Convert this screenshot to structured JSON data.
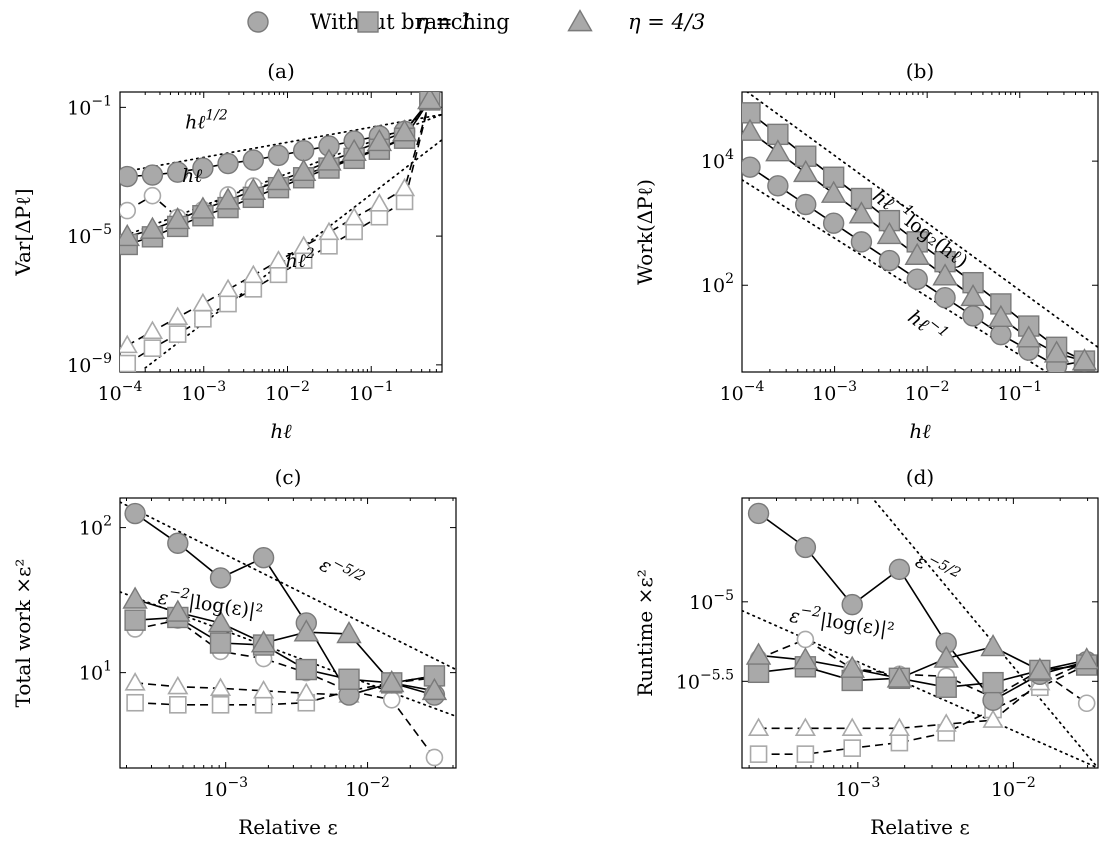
{
  "legend": {
    "entries": [
      {
        "label": "Without branching",
        "marker": "circle"
      },
      {
        "label": "η = 1",
        "marker": "square"
      },
      {
        "label": "η = 4/3",
        "marker": "triangle"
      }
    ]
  },
  "colors": {
    "marker_fill": "#a9a9a9",
    "marker_edge": "#7a7a7a",
    "line": "#000000"
  },
  "chart_data": [
    {
      "id": "a",
      "panel_label": "(a)",
      "type": "line",
      "xlabel": "hℓ",
      "ylabel": "Var[ΔPℓ]",
      "xscale": "log",
      "yscale": "log",
      "xlim": [
        0.0001,
        0.7
      ],
      "ylim": [
        6e-10,
        0.3
      ],
      "xticks": [
        {
          "v": 0.0001,
          "base": "10",
          "exp": "−4"
        },
        {
          "v": 0.001,
          "base": "10",
          "exp": "−3"
        },
        {
          "v": 0.01,
          "base": "10",
          "exp": "−2"
        },
        {
          "v": 0.1,
          "base": "10",
          "exp": "−1"
        }
      ],
      "yticks": [
        {
          "v": 1e-09,
          "base": "10",
          "exp": "−9"
        },
        {
          "v": 1e-05,
          "base": "10",
          "exp": "−5"
        },
        {
          "v": 0.1,
          "base": "10",
          "exp": "−1"
        }
      ],
      "series": [
        {
          "marker": "circle",
          "style": "solid",
          "filled": true,
          "x": [
            0.000122,
            0.000244,
            0.000488,
            0.000977,
            0.00195,
            0.00391,
            0.00781,
            0.0156,
            0.0313,
            0.0625,
            0.125,
            0.25,
            0.5
          ],
          "y": [
            0.00071,
            0.00079,
            0.00097,
            0.0013,
            0.0018,
            0.0023,
            0.0032,
            0.0045,
            0.0063,
            0.009,
            0.013,
            0.018,
            0.17
          ]
        },
        {
          "marker": "square",
          "style": "solid",
          "filled": true,
          "x": [
            0.000122,
            0.000244,
            0.000488,
            0.000977,
            0.00195,
            0.00391,
            0.00781,
            0.0156,
            0.0313,
            0.0625,
            0.125,
            0.25,
            0.5
          ],
          "y": [
            5.5e-06,
            9.5e-06,
            2e-05,
            4.3e-05,
            7.7e-05,
            0.00016,
            0.00032,
            0.00065,
            0.0013,
            0.0026,
            0.005,
            0.011,
            0.17
          ]
        },
        {
          "marker": "triangle",
          "style": "solid",
          "filled": true,
          "x": [
            0.000122,
            0.000244,
            0.000488,
            0.000977,
            0.00195,
            0.00391,
            0.00781,
            0.0156,
            0.0313,
            0.0625,
            0.125,
            0.25,
            0.5
          ],
          "y": [
            9.5e-06,
            1.6e-05,
            3.2e-05,
            6.8e-05,
            0.00013,
            0.00026,
            0.00052,
            0.001,
            0.0021,
            0.0042,
            0.0085,
            0.017,
            0.17
          ]
        },
        {
          "marker": "circle",
          "style": "dashed",
          "filled": false,
          "x": [
            0.000122,
            0.000244,
            0.000488,
            0.000977,
            0.00195,
            0.00391,
            0.00781,
            0.0156,
            0.0313,
            0.0625,
            0.125,
            0.25,
            0.5
          ],
          "y": [
            6.2e-05,
            0.00018,
            3.8e-05,
            6.6e-05,
            0.00019,
            0.00036,
            0.0004,
            0.00079,
            0.0015,
            0.0027,
            0.0055,
            0.011,
            0.17
          ]
        },
        {
          "marker": "square",
          "style": "dashed",
          "filled": false,
          "x": [
            0.000122,
            0.000244,
            0.000488,
            0.000977,
            0.00195,
            0.00391,
            0.00781,
            0.0156,
            0.0313,
            0.0625,
            0.125,
            0.25,
            0.5
          ],
          "y": [
            1.1e-09,
            3.3e-09,
            9e-09,
            2.7e-08,
            8e-08,
            2.3e-07,
            6.5e-07,
            1.8e-06,
            5e-06,
            1.4e-05,
            4e-05,
            0.00012,
            0.17
          ]
        },
        {
          "marker": "triangle",
          "style": "dashed",
          "filled": false,
          "x": [
            0.000122,
            0.000244,
            0.000488,
            0.000977,
            0.00195,
            0.00391,
            0.00781,
            0.0156,
            0.0313,
            0.0625,
            0.125,
            0.25,
            0.5
          ],
          "y": [
            4e-09,
            1.1e-08,
            3e-08,
            8e-08,
            2.2e-07,
            6e-07,
            1.7e-06,
            4.8e-06,
            1.3e-05,
            3.7e-05,
            0.0001,
            0.0003,
            0.17
          ]
        }
      ],
      "reference_lines": [
        {
          "x": [
            0.0001,
            0.7
          ],
          "y": [
            0.00095,
            0.06
          ]
        },
        {
          "x": [
            0.0001,
            0.7
          ],
          "y": [
            9e-06,
            0.06
          ]
        },
        {
          "x": [
            0.0002,
            0.7
          ],
          "y": [
            8e-10,
            0.0098
          ]
        }
      ],
      "annotations": [
        {
          "text": "hℓ",
          "sup": "1/2",
          "x": 0.0006,
          "y": 0.022
        },
        {
          "text": "hℓ",
          "sup": "",
          "x": 0.00055,
          "y": 0.00048
        },
        {
          "text": "hℓ",
          "sup": "2",
          "x": 0.0095,
          "y": 1.1e-06
        }
      ]
    },
    {
      "id": "b",
      "panel_label": "(b)",
      "type": "line",
      "xlabel": "hℓ",
      "ylabel": "Work(ΔPℓ)",
      "xscale": "log",
      "yscale": "log",
      "xlim": [
        0.0001,
        0.7
      ],
      "ylim": [
        4,
        130000
      ],
      "xticks": [
        {
          "v": 0.0001,
          "base": "10",
          "exp": "−4"
        },
        {
          "v": 0.001,
          "base": "10",
          "exp": "−3"
        },
        {
          "v": 0.01,
          "base": "10",
          "exp": "−2"
        },
        {
          "v": 0.1,
          "base": "10",
          "exp": "−1"
        }
      ],
      "yticks": [
        {
          "v": 100,
          "base": "10",
          "exp": "2"
        },
        {
          "v": 10000,
          "base": "10",
          "exp": "4"
        }
      ],
      "series": [
        {
          "marker": "circle",
          "style": "solid",
          "filled": true,
          "x": [
            0.000122,
            0.000244,
            0.000488,
            0.000977,
            0.00195,
            0.00391,
            0.00781,
            0.0156,
            0.0313,
            0.0625,
            0.125,
            0.25,
            0.5
          ],
          "y": [
            8000,
            4000,
            2000,
            1000,
            500,
            250,
            125,
            63,
            32,
            16,
            9,
            5,
            6
          ]
        },
        {
          "marker": "square",
          "style": "solid",
          "filled": true,
          "x": [
            0.000122,
            0.000244,
            0.000488,
            0.000977,
            0.00195,
            0.00391,
            0.00781,
            0.0156,
            0.0313,
            0.0625,
            0.125,
            0.25,
            0.5
          ],
          "y": [
            60000,
            27000,
            12000,
            5500,
            2500,
            1100,
            500,
            240,
            110,
            50,
            22,
            10,
            6
          ]
        },
        {
          "marker": "triangle",
          "style": "solid",
          "filled": true,
          "x": [
            0.000122,
            0.000244,
            0.000488,
            0.000977,
            0.00195,
            0.00391,
            0.00781,
            0.0156,
            0.0313,
            0.0625,
            0.125,
            0.25,
            0.5
          ],
          "y": [
            30000,
            14000,
            6500,
            3000,
            1400,
            650,
            300,
            140,
            65,
            30,
            14,
            8,
            6
          ]
        }
      ],
      "reference_lines": [
        {
          "x": [
            0.0001,
            0.7
          ],
          "y": [
            150000,
            10
          ]
        },
        {
          "x": [
            0.0001,
            0.7
          ],
          "y": [
            5000,
            1.2
          ]
        }
      ],
      "annotations": [
        {
          "text": "hℓ",
          "sup": "−1",
          "suffix": "log₂(hℓ)",
          "x": 0.0025,
          "y": 2500,
          "rotate": 38
        },
        {
          "text": "hℓ",
          "sup": "−1",
          "x": 0.006,
          "y": 28,
          "rotate": 38
        }
      ]
    },
    {
      "id": "c",
      "panel_label": "(c)",
      "type": "line",
      "xlabel": "Relative ε",
      "ylabel": "Total work ×ε²",
      "xscale": "log",
      "yscale": "log",
      "xlim": [
        0.00018,
        0.042
      ],
      "ylim": [
        2.2,
        160
      ],
      "xticks": [
        {
          "v": 0.001,
          "base": "10",
          "exp": "−3"
        },
        {
          "v": 0.01,
          "base": "10",
          "exp": "−2"
        }
      ],
      "yticks": [
        {
          "v": 10,
          "base": "10",
          "exp": "1"
        },
        {
          "v": 100,
          "base": "10",
          "exp": "2"
        }
      ],
      "series": [
        {
          "marker": "circle",
          "style": "solid",
          "filled": true,
          "x": [
            0.00023,
            0.00046,
            0.00092,
            0.00185,
            0.0037,
            0.0074,
            0.0148,
            0.0296
          ],
          "y": [
            125,
            78,
            45,
            62,
            22,
            7,
            8.5,
            7
          ]
        },
        {
          "marker": "square",
          "style": "solid",
          "filled": true,
          "x": [
            0.00023,
            0.00046,
            0.00092,
            0.00185,
            0.0037,
            0.0074,
            0.0148,
            0.0296
          ],
          "y": [
            23,
            24,
            16,
            15.5,
            10.5,
            9,
            8.5,
            9.5
          ]
        },
        {
          "marker": "triangle",
          "style": "solid",
          "filled": true,
          "x": [
            0.00023,
            0.00046,
            0.00092,
            0.00185,
            0.0037,
            0.0074,
            0.0148,
            0.0296
          ],
          "y": [
            32,
            26,
            22,
            16,
            19,
            18.5,
            8.5,
            7.5
          ]
        },
        {
          "marker": "circle",
          "style": "dashed",
          "filled": false,
          "x": [
            0.00023,
            0.00046,
            0.00092,
            0.00185,
            0.0037,
            0.0074,
            0.0148,
            0.0296
          ],
          "y": [
            20,
            23,
            14,
            12.5,
            10,
            7.5,
            6.5,
            2.6
          ]
        },
        {
          "marker": "square",
          "style": "dashed",
          "filled": false,
          "x": [
            0.00023,
            0.00046,
            0.00092,
            0.00185,
            0.0037,
            0.0074,
            0.0148,
            0.0296
          ],
          "y": [
            6.2,
            6,
            6,
            6,
            6.2,
            7.5,
            8.5,
            9.2
          ]
        },
        {
          "marker": "triangle",
          "style": "dashed",
          "filled": false,
          "x": [
            0.00023,
            0.00046,
            0.00092,
            0.00185,
            0.0037,
            0.0074,
            0.0148,
            0.0296
          ],
          "y": [
            8.5,
            8,
            7.8,
            7.5,
            7.2,
            7,
            8.5,
            9.5
          ]
        }
      ],
      "reference_lines": [
        {
          "x": [
            0.00018,
            0.042
          ],
          "y": [
            150,
            10.5
          ]
        },
        {
          "x": [
            0.00018,
            0.042
          ],
          "y": [
            36,
            5
          ]
        }
      ],
      "annotations": [
        {
          "text": "ε",
          "sup": "−5/2",
          "x": 0.0045,
          "y": 52,
          "rotate": 28
        },
        {
          "text": "ε",
          "sup": "−2",
          "suffix": "|log(ε)|²",
          "x": 0.00033,
          "y": 30,
          "rotate": 8
        }
      ]
    },
    {
      "id": "d",
      "panel_label": "(d)",
      "type": "line",
      "xlabel": "Relative ε",
      "ylabel": "Runtime ×ε²",
      "xscale": "log",
      "yscale": "log",
      "xlim": [
        0.00018,
        0.035
      ],
      "ylim": [
        9e-07,
        4.5e-05
      ],
      "xticks": [
        {
          "v": 0.001,
          "base": "10",
          "exp": "−3"
        },
        {
          "v": 0.01,
          "base": "10",
          "exp": "−2"
        }
      ],
      "yticks": [
        {
          "v": 1e-05,
          "base": "10",
          "exp": "−5"
        },
        {
          "v": 3.16e-06,
          "base": "10",
          "exp": "−5.5"
        }
      ],
      "series": [
        {
          "marker": "circle",
          "style": "solid",
          "filled": true,
          "x": [
            0.00023,
            0.00046,
            0.00092,
            0.00185,
            0.0037,
            0.0074,
            0.0148,
            0.0296
          ],
          "y": [
            3.6e-05,
            2.2e-05,
            9.6e-06,
            1.6e-05,
            5.5e-06,
            2.4e-06,
            3.5e-06,
            4.2e-06
          ]
        },
        {
          "marker": "square",
          "style": "solid",
          "filled": true,
          "x": [
            0.00023,
            0.00046,
            0.00092,
            0.00185,
            0.0037,
            0.0074,
            0.0148,
            0.0296
          ],
          "y": [
            3.6e-06,
            3.9e-06,
            3.2e-06,
            3.3e-06,
            2.9e-06,
            3.1e-06,
            3.7e-06,
            4e-06
          ]
        },
        {
          "marker": "triangle",
          "style": "solid",
          "filled": true,
          "x": [
            0.00023,
            0.00046,
            0.00092,
            0.00185,
            0.0037,
            0.0074,
            0.0148,
            0.0296
          ],
          "y": [
            4.6e-06,
            4.3e-06,
            3.8e-06,
            3.3e-06,
            4.4e-06,
            5.2e-06,
            3.7e-06,
            4.3e-06
          ]
        },
        {
          "marker": "circle",
          "style": "dashed",
          "filled": false,
          "x": [
            0.00023,
            0.00046,
            0.00092,
            0.00185,
            0.0037,
            0.0074,
            0.0148,
            0.0296
          ],
          "y": [
            4.4e-06,
            5.8e-06,
            3.8e-06,
            3.5e-06,
            3.4e-06,
            2.5e-06,
            3.7e-06,
            2.3e-06
          ]
        },
        {
          "marker": "square",
          "style": "dashed",
          "filled": false,
          "x": [
            0.00023,
            0.00046,
            0.00092,
            0.00185,
            0.0037,
            0.0074,
            0.0148,
            0.0296
          ],
          "y": [
            1.1e-06,
            1.1e-06,
            1.2e-06,
            1.3e-06,
            1.5e-06,
            2.1e-06,
            2.9e-06,
            4e-06
          ]
        },
        {
          "marker": "triangle",
          "style": "dashed",
          "filled": false,
          "x": [
            0.00023,
            0.00046,
            0.00092,
            0.00185,
            0.0037,
            0.0074,
            0.0148,
            0.0296
          ],
          "y": [
            1.6e-06,
            1.6e-06,
            1.6e-06,
            1.6e-06,
            1.7e-06,
            1.8e-06,
            3.1e-06,
            4.2e-06
          ]
        }
      ],
      "reference_lines": [
        {
          "x": [
            0.00097,
            0.035
          ],
          "y": [
            6e-05,
            9e-07
          ]
        },
        {
          "x": [
            0.00018,
            0.035
          ],
          "y": [
            8.8e-06,
            9e-07
          ]
        }
      ],
      "annotations": [
        {
          "text": "ε",
          "sup": "−5/2",
          "x": 0.0023,
          "y": 1.7e-05,
          "rotate": 28
        },
        {
          "text": "ε",
          "sup": "−2",
          "suffix": "|log(ε)|²",
          "x": 0.00036,
          "y": 7.5e-06,
          "rotate": 8
        }
      ]
    }
  ]
}
